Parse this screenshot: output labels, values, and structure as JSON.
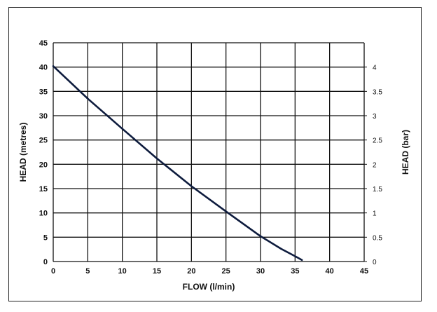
{
  "chart_data": {
    "type": "line",
    "title": "",
    "xlabel": "FLOW (l/min)",
    "ylabel": "HEAD (metres)",
    "y2label": "HEAD (bar)",
    "xlim": [
      0,
      45
    ],
    "ylim": [
      0,
      45
    ],
    "y2lim": [
      0,
      4.5
    ],
    "grid": true,
    "legend": "none",
    "x_ticks": [
      "0",
      "5",
      "10",
      "15",
      "20",
      "25",
      "30",
      "35",
      "40",
      "45"
    ],
    "y_ticks": [
      "0",
      "5",
      "10",
      "15",
      "20",
      "25",
      "30",
      "35",
      "40",
      "45"
    ],
    "y2_ticks": [
      "0",
      "0.5",
      "1",
      "1.5",
      "2",
      "2.5",
      "3",
      "3.5",
      "4"
    ],
    "series": [
      {
        "color": "#0d1b3d",
        "x": [
          0,
          5,
          10,
          15,
          20,
          25,
          30,
          33,
          35,
          36
        ],
        "y": [
          40.2,
          33.5,
          27.3,
          21.2,
          15.5,
          10.3,
          5.2,
          2.6,
          1.1,
          0.3
        ]
      }
    ]
  }
}
